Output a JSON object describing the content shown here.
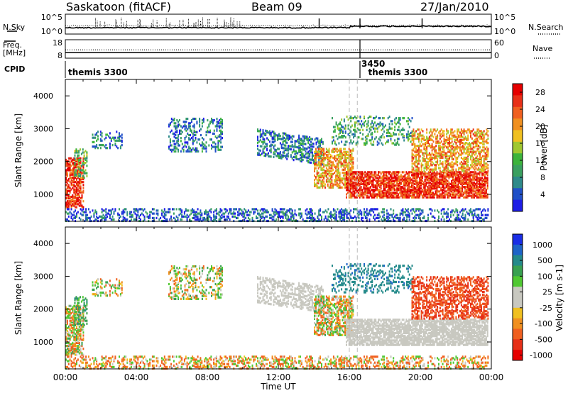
{
  "header": {
    "station": "Saskatoon (fitACF)",
    "beam": "Beam 09",
    "date": "27/Jan/2010"
  },
  "colors": {
    "power": [
      "#1e1ee6",
      "#2050c8",
      "#2e8a8a",
      "#3aa060",
      "#3cb43c",
      "#a0c830",
      "#f0c020",
      "#f09020",
      "#f06020",
      "#e83018",
      "#e60000"
    ],
    "velocity": [
      "#1a2ee6",
      "#1e64c8",
      "#248a8a",
      "#38a050",
      "#50c832",
      "#c8c8c0",
      "#c8c8c0",
      "#f0c020",
      "#f09020",
      "#f06020",
      "#e63018",
      "#e60000"
    ],
    "background_scatter": "#c4c4bc"
  },
  "chart_data": [
    {
      "type": "line",
      "panel": "noise",
      "left_label": "N.Sky",
      "right_label": "N.Search",
      "yticks_left": [
        "10^5",
        "10^0"
      ],
      "yticks_right": [
        "10^5",
        "10^0"
      ],
      "x": [
        "00:00",
        "04:00",
        "08:00",
        "12:00",
        "16:00",
        "20:00",
        "00:00"
      ]
    },
    {
      "type": "line",
      "panel": "frequency",
      "left_label": "Freq. [MHz]",
      "right_label": "Nave",
      "yticks_left": [
        "18",
        "8"
      ],
      "yticks_right": [
        "60",
        "0"
      ],
      "freq_mhz": 11,
      "nave": 20
    },
    {
      "type": "table",
      "panel": "cpid",
      "label": "CPID",
      "entries": [
        {
          "time_hours": 0.0,
          "label": "themis 3300"
        },
        {
          "time_hours": 16.6,
          "label": "3450"
        },
        {
          "time_hours": 16.9,
          "label": "themis 3300"
        }
      ]
    },
    {
      "type": "heatmap",
      "panel": "power",
      "ylabel": "Slant Range [km]",
      "yticks": [
        1000,
        2000,
        3000,
        4000
      ],
      "ylim": [
        180,
        4500
      ],
      "xlim_hours": [
        0,
        24
      ],
      "colorbar_label": "Power [dB]",
      "colorbar_ticks": [
        4,
        8,
        12,
        16,
        20,
        24,
        28
      ],
      "colorbar_range": [
        0,
        30
      ],
      "dashed_marker_hours": [
        16.0,
        16.45
      ]
    },
    {
      "type": "heatmap",
      "panel": "velocity",
      "ylabel": "Slant Range [km]",
      "xlabel": "Time UT",
      "yticks": [
        1000,
        2000,
        3000,
        4000
      ],
      "ylim": [
        180,
        4500
      ],
      "xlim_hours": [
        0,
        24
      ],
      "xticks": [
        "00:00",
        "04:00",
        "08:00",
        "12:00",
        "16:00",
        "20:00",
        "00:00"
      ],
      "colorbar_label": "Velocity [m s-1]",
      "colorbar_ticks": [
        1000,
        500,
        100,
        25,
        -25,
        -100,
        -500,
        -1000
      ],
      "dashed_marker_hours": [
        16.0,
        16.45
      ]
    }
  ]
}
